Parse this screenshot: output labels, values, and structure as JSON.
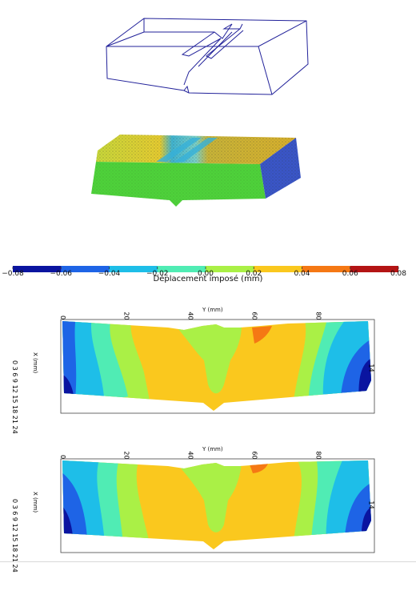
{
  "colorbar": {
    "label": "Déplacement imposé (mm)",
    "ticks": [
      "−0.08",
      "−0.06",
      "−0.04",
      "−0.02",
      "0.00",
      "0.02",
      "0.04",
      "0.06",
      "0.08"
    ],
    "colors": [
      "#0a14a0",
      "#1e64e6",
      "#1ebee8",
      "#50ecb4",
      "#aaf046",
      "#fac81e",
      "#f57814",
      "#b41414"
    ]
  },
  "plot1": {
    "ylabel": "Y (mm)",
    "xlabel": "X (mm)",
    "top_ticks": [
      "0",
      "20",
      "40",
      "60",
      "80"
    ],
    "left_ticks": [
      "0",
      "3",
      "6",
      "9",
      "12",
      "15",
      "18",
      "21",
      "24"
    ],
    "right_label": "14"
  },
  "plot2": {
    "ylabel": "Y (mm)",
    "xlabel": "X (mm)",
    "top_ticks": [
      "0",
      "20",
      "40",
      "60",
      "80"
    ],
    "left_ticks": [
      "0",
      "3",
      "6",
      "9",
      "12",
      "15",
      "18",
      "21",
      "24"
    ],
    "right_label": "14"
  }
}
